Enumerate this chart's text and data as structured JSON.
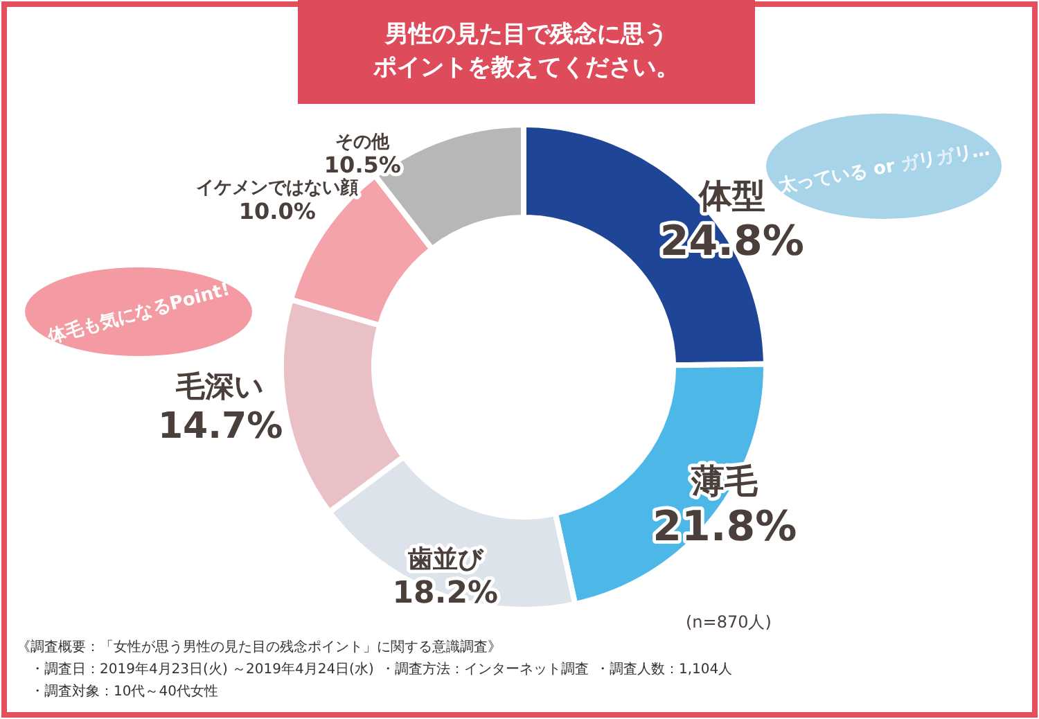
{
  "chart_data": {
    "type": "donut",
    "title": "男性の見た目で残念に思うポイントを教えてください。",
    "categories": [
      "体型",
      "薄毛",
      "歯並び",
      "毛深い",
      "イケメンではない顔",
      "その他"
    ],
    "values": [
      24.8,
      21.8,
      18.2,
      14.7,
      10.0,
      10.5
    ],
    "value_labels": [
      "24.8%",
      "21.8%",
      "18.2%",
      "14.7%",
      "10.0%",
      "10.5%"
    ],
    "colors": [
      "#1f4596",
      "#4db8e8",
      "#dde3ea",
      "#e9c0c6",
      "#f5a3ab",
      "#b7b7b7"
    ],
    "annotations": [
      "太っている or ガリガリ…",
      "体毛も気になるPoint!",
      "(n=870人)",
      "《調査概要：「女性が思う男性の見た目の残念ポイント」に関する意識調査》",
      "・調査日：2019年4月23日(火) ～2019年4月24日(水)",
      "・調査方法：インターネット調査",
      "・調査人数：1,104人",
      "・調査対象：10代～40代女性"
    ]
  }
}
